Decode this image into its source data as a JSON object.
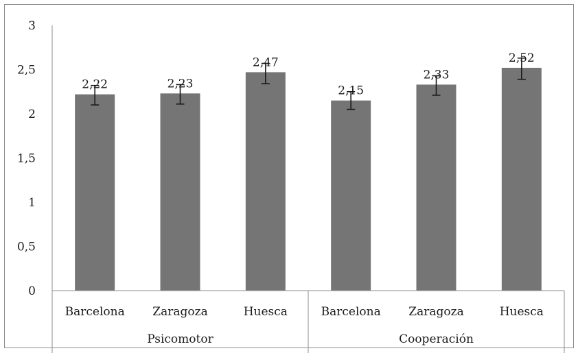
{
  "chart_data": {
    "type": "bar",
    "title": "",
    "xlabel": "",
    "ylabel": "",
    "ylim": [
      0,
      3
    ],
    "yticks": [
      "0",
      "0,5",
      "1",
      "1,5",
      "2",
      "2,5",
      "3"
    ],
    "groups": [
      {
        "label": "Psicomotor",
        "categories": [
          "Barcelona",
          "Zaragoza",
          "Huesca"
        ]
      },
      {
        "label": "Cooperación",
        "categories": [
          "Barcelona",
          "Zaragoza",
          "Huesca"
        ]
      }
    ],
    "values": [
      2.22,
      2.23,
      2.47,
      2.15,
      2.33,
      2.52
    ],
    "data_labels": [
      "2,22",
      "2,23",
      "2,47",
      "2,15",
      "2,33",
      "2,52"
    ],
    "error_low": [
      2.1,
      2.11,
      2.34,
      2.05,
      2.21,
      2.39
    ],
    "error_high": [
      2.32,
      2.33,
      2.57,
      2.25,
      2.43,
      2.63
    ],
    "bar_color": "#757575",
    "error_color": "#1a1a1a",
    "grid": false,
    "legend": "none"
  }
}
